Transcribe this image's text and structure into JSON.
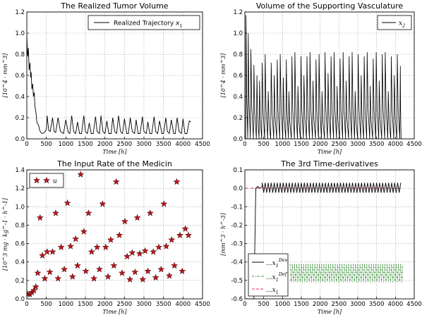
{
  "chart_data": [
    {
      "type": "line",
      "title": "The Realized Tumor Volume",
      "xlabel": "Time [h]",
      "ylabel": "[10^4 · mm^3]",
      "xlim": [
        0,
        4500
      ],
      "ylim": [
        0,
        1.2
      ],
      "xticks": [
        0,
        500,
        1000,
        1500,
        2000,
        2500,
        3000,
        3500,
        4000,
        4500
      ],
      "yticks": [
        0.0,
        0.2,
        0.4,
        0.6,
        0.8,
        1.0,
        1.2
      ],
      "grid": true,
      "legend_position": "top-right",
      "series": [
        {
          "name": "Realized Trajectory x1",
          "color": "#000000",
          "style": "solid",
          "x": [
            0,
            20,
            40,
            60,
            80,
            100,
            110,
            130,
            150,
            170,
            190,
            210,
            230,
            260,
            300,
            330,
            360,
            400,
            450,
            500,
            520,
            560,
            600,
            660,
            700,
            740,
            800,
            860,
            900,
            940,
            1000,
            1060,
            1100,
            1150,
            1200,
            1250,
            1300,
            1350,
            1400,
            1460,
            1500,
            1550,
            1600,
            1650,
            1700,
            1760,
            1800,
            1860,
            1900,
            1950,
            2000,
            2050,
            2100,
            2160,
            2200,
            2250,
            2300,
            2350,
            2400,
            2450,
            2500,
            2560,
            2600,
            2650,
            2700,
            2760,
            2800,
            2850,
            2900,
            2960,
            3000,
            3060,
            3100,
            3150,
            3200,
            3260,
            3300,
            3350,
            3400,
            3460,
            3500,
            3560,
            3600,
            3650,
            3700,
            3760,
            3800,
            3850,
            3900,
            3960,
            4000,
            4050,
            4100,
            4160,
            4200
          ],
          "y": [
            0.98,
            0.78,
            0.86,
            0.65,
            0.72,
            0.58,
            0.63,
            0.47,
            0.52,
            0.4,
            0.44,
            0.3,
            0.26,
            0.15,
            0.13,
            0.08,
            0.06,
            0.05,
            0.06,
            0.09,
            0.22,
            0.08,
            0.07,
            0.2,
            0.07,
            0.06,
            0.2,
            0.07,
            0.06,
            0.05,
            0.18,
            0.06,
            0.05,
            0.22,
            0.07,
            0.05,
            0.16,
            0.05,
            0.05,
            0.22,
            0.07,
            0.05,
            0.15,
            0.05,
            0.05,
            0.21,
            0.07,
            0.05,
            0.22,
            0.07,
            0.05,
            0.17,
            0.05,
            0.05,
            0.2,
            0.07,
            0.05,
            0.22,
            0.07,
            0.05,
            0.19,
            0.05,
            0.05,
            0.2,
            0.07,
            0.05,
            0.18,
            0.05,
            0.05,
            0.21,
            0.07,
            0.05,
            0.16,
            0.05,
            0.05,
            0.21,
            0.07,
            0.05,
            0.17,
            0.05,
            0.05,
            0.2,
            0.07,
            0.05,
            0.18,
            0.05,
            0.05,
            0.2,
            0.07,
            0.05,
            0.19,
            0.05,
            0.05,
            0.17,
            0.16
          ]
        }
      ]
    },
    {
      "type": "line",
      "title": "Volume of the Supporting Vasculature",
      "xlabel": "Time [h]",
      "ylabel": "[10^4 · mm^3]",
      "xlim": [
        0,
        4500
      ],
      "ylim": [
        0,
        1.2
      ],
      "xticks": [
        0,
        500,
        1000,
        1500,
        2000,
        2500,
        3000,
        3500,
        4000,
        4500
      ],
      "yticks": [
        0.0,
        0.2,
        0.4,
        0.6,
        0.8,
        1.0,
        1.2
      ],
      "grid": true,
      "legend_position": "top-right",
      "series": [
        {
          "name": "x2",
          "color": "#000000",
          "style": "solid",
          "peak_times": [
            30,
            90,
            160,
            240,
            320,
            390,
            460,
            540,
            620,
            700,
            780,
            860,
            940,
            1020,
            1100,
            1170,
            1250,
            1330,
            1410,
            1490,
            1570,
            1650,
            1730,
            1810,
            1890,
            1970,
            2050,
            2130,
            2210,
            2290,
            2370,
            2450,
            2530,
            2610,
            2690,
            2770,
            2850,
            2930,
            3010,
            3090,
            3170,
            3250,
            3330,
            3410,
            3490,
            3570,
            3650,
            3730,
            3810,
            3890,
            3970,
            4050,
            4130
          ],
          "peak_values": [
            1.17,
            1.0,
            0.85,
            0.7,
            0.6,
            0.55,
            0.72,
            0.8,
            0.45,
            0.72,
            0.6,
            0.75,
            0.8,
            0.58,
            0.75,
            0.45,
            0.78,
            0.82,
            0.5,
            0.78,
            0.6,
            0.78,
            0.82,
            0.55,
            0.75,
            0.8,
            0.45,
            0.82,
            0.62,
            0.78,
            0.82,
            0.5,
            0.76,
            0.82,
            0.55,
            0.78,
            0.82,
            0.45,
            0.8,
            0.6,
            0.78,
            0.82,
            0.5,
            0.76,
            0.82,
            0.55,
            0.8,
            0.82,
            0.45,
            0.78,
            0.6,
            0.8,
            0.69
          ],
          "min_value": 0.0
        }
      ]
    },
    {
      "type": "scatter",
      "title": "The Input Rate of the Medicin",
      "xlabel": "Time [h]",
      "ylabel": "[10^3 mg · kg^-1 · h^-1]",
      "xlim": [
        0,
        4500
      ],
      "ylim": [
        0,
        1.4
      ],
      "xticks": [
        0,
        500,
        1000,
        1500,
        2000,
        2500,
        3000,
        3500,
        4000,
        4500
      ],
      "yticks": [
        0.0,
        0.2,
        0.4,
        0.6,
        0.8,
        1.0,
        1.2,
        1.4
      ],
      "grid": true,
      "legend_position": "top-left",
      "series": [
        {
          "name": "u",
          "color": "#c0161c",
          "marker": "star",
          "x": [
            30,
            80,
            130,
            180,
            230,
            280,
            340,
            400,
            460,
            520,
            590,
            660,
            740,
            800,
            880,
            960,
            1040,
            1120,
            1170,
            1250,
            1300,
            1380,
            1460,
            1510,
            1580,
            1660,
            1720,
            1800,
            1860,
            1940,
            2020,
            2080,
            2150,
            2230,
            2290,
            2370,
            2440,
            2510,
            2570,
            2640,
            2700,
            2770,
            2830,
            2890,
            2970,
            3030,
            3100,
            3160,
            3240,
            3300,
            3380,
            3440,
            3510,
            3570,
            3650,
            3710,
            3780,
            3840,
            3920,
            3980,
            4060,
            4140
          ],
          "y": [
            0.05,
            0.05,
            0.07,
            0.09,
            0.13,
            0.28,
            0.88,
            0.47,
            0.22,
            0.51,
            0.29,
            0.51,
            0.93,
            0.22,
            0.56,
            0.32,
            1.04,
            0.57,
            0.24,
            0.65,
            0.36,
            1.35,
            0.73,
            0.3,
            0.93,
            0.51,
            0.22,
            0.56,
            0.32,
            1.03,
            0.56,
            0.24,
            0.64,
            0.36,
            1.27,
            0.69,
            0.28,
            0.84,
            0.46,
            0.21,
            0.5,
            0.29,
            0.88,
            0.49,
            0.21,
            0.52,
            0.3,
            0.93,
            0.51,
            0.23,
            0.56,
            0.32,
            1.03,
            0.57,
            0.25,
            0.64,
            0.36,
            1.27,
            0.69,
            0.3,
            0.76,
            0.69
          ]
        }
      ]
    },
    {
      "type": "line",
      "title": "The 3rd Time-derivatives",
      "xlabel": "Time [h]",
      "ylabel": "[mm^3 · h^-3]",
      "xlim": [
        0,
        4500
      ],
      "ylim": [
        -0.6,
        0.1
      ],
      "xticks": [
        0,
        500,
        1000,
        1500,
        2000,
        2500,
        3000,
        3500,
        4000,
        4500
      ],
      "yticks": [
        -0.6,
        -0.5,
        -0.4,
        -0.3,
        -0.2,
        -0.1,
        0.0,
        0.1
      ],
      "grid": true,
      "legend_position": "bottom-left",
      "series": [
        {
          "name": "x1^Des",
          "color": "#000000",
          "style": "solid",
          "x": [
            0,
            120,
            240,
            290,
            340,
            400,
            460
          ],
          "y": [
            -0.6,
            -0.6,
            -0.6,
            0.0,
            0.01,
            0.0,
            0.01
          ],
          "oscillation": {
            "from": 460,
            "to": 4150,
            "period": 80,
            "center": 0.0,
            "amplitude": 0.03
          }
        },
        {
          "name": "x1^Def",
          "color": "#2e8b2e",
          "style": "dash-dot",
          "oscillation": {
            "from": 1200,
            "to": 4200,
            "period": 60,
            "center": -0.46,
            "amplitude": 0.05
          }
        },
        {
          "name": "x1",
          "color": "#e0559a",
          "style": "dashed",
          "x": [
            0,
            4200
          ],
          "y": [
            0.0,
            0.0
          ]
        }
      ]
    }
  ],
  "legend_labels": {
    "p1": [
      "Realized Trajectory ",
      "x",
      "1"
    ],
    "p2": [
      "x",
      "2"
    ],
    "p3": [
      "u"
    ],
    "p4a": [
      "x",
      "1",
      "Des"
    ],
    "p4b": [
      "x",
      "1",
      "Def"
    ],
    "p4c": [
      "x",
      "1"
    ]
  }
}
